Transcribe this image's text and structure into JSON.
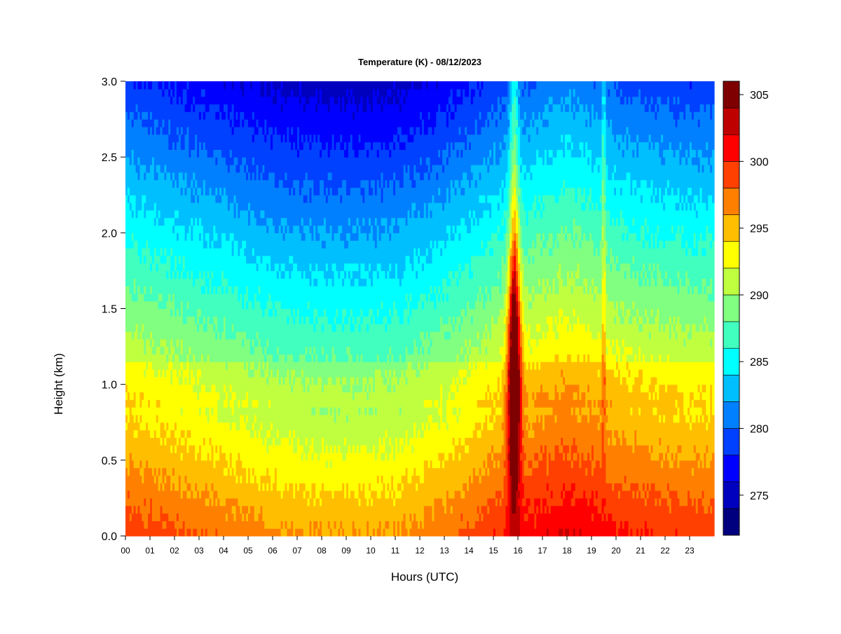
{
  "chart_data": {
    "type": "heatmap",
    "title": "Temperature (K) - 08/12/2023",
    "xlabel": "Hours (UTC)",
    "ylabel": "Height (km)",
    "xlim": [
      0,
      24
    ],
    "ylim": [
      0,
      3.0
    ],
    "x_ticks": [
      "00",
      "01",
      "02",
      "03",
      "04",
      "05",
      "06",
      "07",
      "08",
      "09",
      "10",
      "11",
      "12",
      "13",
      "14",
      "15",
      "16",
      "17",
      "18",
      "19",
      "20",
      "21",
      "22",
      "23"
    ],
    "y_ticks": [
      "0.0",
      "0.5",
      "1.0",
      "1.5",
      "2.0",
      "2.5",
      "3.0"
    ],
    "colorbar": {
      "levels": [
        272,
        274,
        276,
        278,
        280,
        282,
        284,
        286,
        288,
        290,
        292,
        294,
        296,
        298,
        300,
        302,
        304,
        306
      ],
      "colors": [
        "#00007f",
        "#0000bf",
        "#0000ff",
        "#0040ff",
        "#0080ff",
        "#00bfff",
        "#00ffff",
        "#40ffbf",
        "#80ff80",
        "#bfff40",
        "#ffff00",
        "#ffbf00",
        "#ff8000",
        "#ff4000",
        "#ff0000",
        "#bf0000",
        "#7f0000"
      ],
      "tick_labels": [
        "275",
        "280",
        "285",
        "290",
        "295",
        "300",
        "305"
      ],
      "tick_values": [
        275,
        280,
        285,
        290,
        295,
        300,
        305
      ]
    },
    "surface_temperature_by_hour": [
      299.5,
      299,
      298.5,
      298,
      297.5,
      297,
      296.5,
      296.2,
      296,
      296,
      296,
      296.2,
      296.8,
      297.5,
      298.5,
      299.5,
      300.5,
      301.5,
      302,
      301.5,
      300.5,
      300,
      299.8,
      299.5
    ],
    "lapse_rate_K_per_km": 7,
    "features": [
      {
        "label": "warm plume",
        "hour_center": 15.85,
        "peak_temperature": 305,
        "height_range_km": [
          0.45,
          1.7
        ]
      },
      {
        "label": "warm column",
        "hour_center": 19.5,
        "height_range_km": [
          0,
          3.0
        ]
      }
    ]
  }
}
